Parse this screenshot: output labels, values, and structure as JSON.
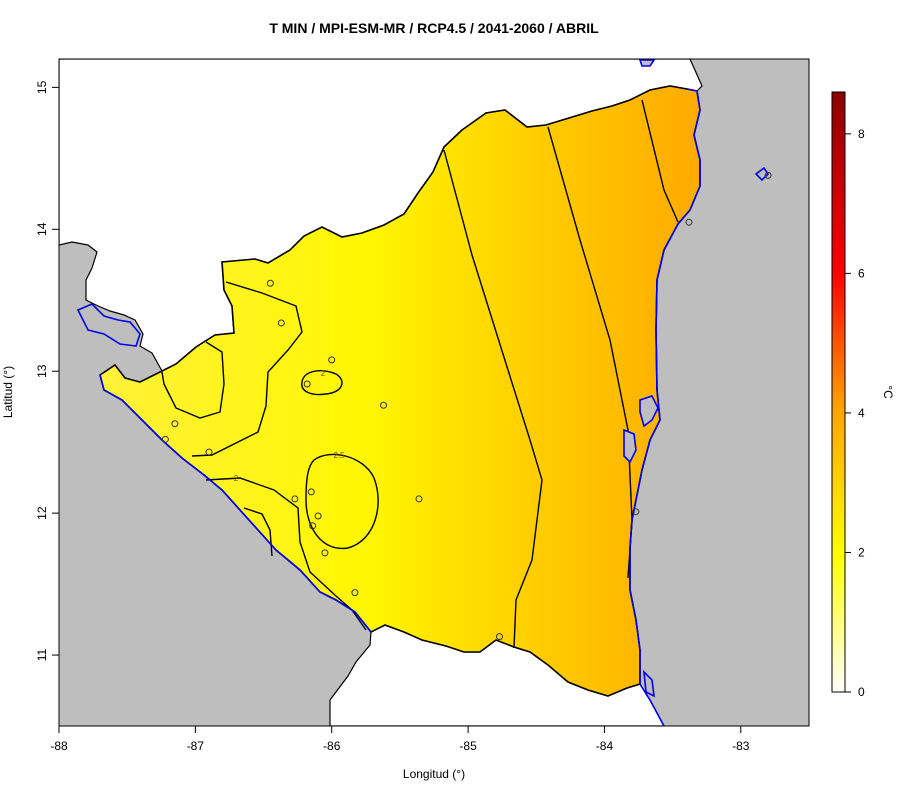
{
  "title": "T MIN / MPI-ESM-MR / RCP4.5 / 2041-2060 / ABRIL",
  "chart_data": {
    "type": "heatmap",
    "title": "T MIN / MPI-ESM-MR / RCP4.5 / 2041-2060 / ABRIL",
    "xlabel": "Longitud (°)",
    "ylabel": "Latitud (°)",
    "xlim": [
      -88,
      -82.5
    ],
    "ylim": [
      10.5,
      15.2
    ],
    "x_ticks": [
      "-88",
      "-87",
      "-86",
      "-85",
      "-84",
      "-83"
    ],
    "y_ticks": [
      "11",
      "12",
      "13",
      "14",
      "15"
    ],
    "colorbar": {
      "label": "°C",
      "range": [
        0,
        8.6
      ],
      "ticks": [
        "0",
        "2",
        "4",
        "6",
        "8"
      ],
      "colors": [
        "#ffffff",
        "#ffff00",
        "#ffa500",
        "#ff0000",
        "#8b0000"
      ]
    },
    "contour_labels": [
      "2",
      "2",
      "2.5"
    ],
    "stations": [
      {
        "lon": -86.45,
        "lat": 13.62
      },
      {
        "lon": -86.37,
        "lat": 13.34
      },
      {
        "lon": -86.0,
        "lat": 13.08
      },
      {
        "lon": -86.18,
        "lat": 12.91
      },
      {
        "lon": -85.62,
        "lat": 12.76
      },
      {
        "lon": -87.15,
        "lat": 12.63
      },
      {
        "lon": -87.22,
        "lat": 12.52
      },
      {
        "lon": -86.9,
        "lat": 12.43
      },
      {
        "lon": -86.15,
        "lat": 12.15
      },
      {
        "lon": -86.27,
        "lat": 12.1
      },
      {
        "lon": -85.36,
        "lat": 12.1
      },
      {
        "lon": -86.1,
        "lat": 11.98
      },
      {
        "lon": -86.14,
        "lat": 11.91
      },
      {
        "lon": -86.05,
        "lat": 11.72
      },
      {
        "lon": -85.83,
        "lat": 11.44
      },
      {
        "lon": -84.77,
        "lat": 11.13
      },
      {
        "lon": -83.77,
        "lat": 12.01
      },
      {
        "lon": -83.38,
        "lat": 14.05
      },
      {
        "lon": -82.8,
        "lat": 14.38
      }
    ]
  }
}
